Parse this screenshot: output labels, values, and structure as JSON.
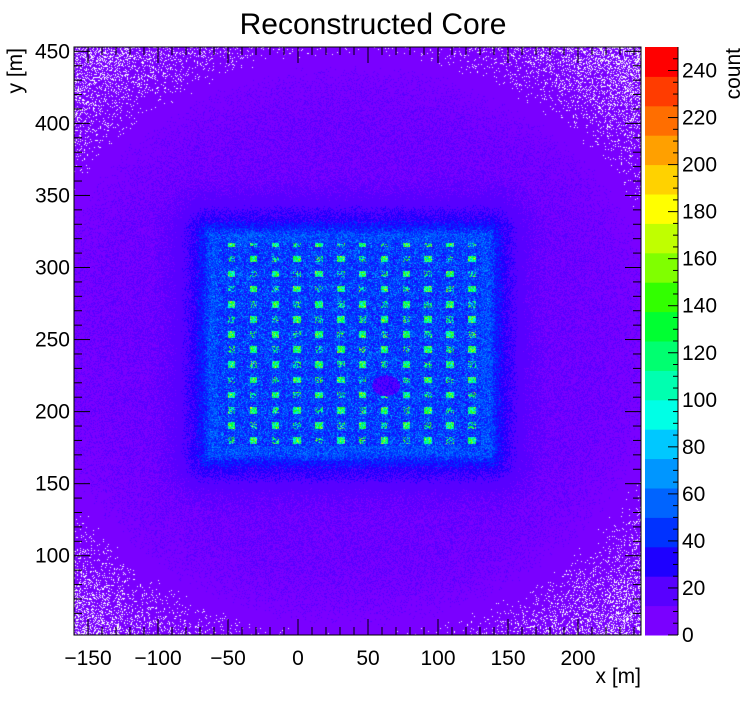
{
  "chart_data": {
    "type": "heatmap",
    "title": "Reconstructed Core",
    "xlabel": "x [m]",
    "ylabel": "y [m]",
    "zlabel": "count",
    "xlim": [
      -160,
      245
    ],
    "ylim": [
      45,
      453
    ],
    "zlim": [
      0,
      250
    ],
    "x_ticks": [
      -150,
      -100,
      -50,
      0,
      50,
      100,
      150,
      200
    ],
    "y_ticks": [
      100,
      150,
      200,
      250,
      300,
      350,
      400,
      450
    ],
    "z_ticks": [
      0,
      20,
      40,
      60,
      80,
      100,
      120,
      140,
      160,
      180,
      200,
      220,
      240
    ],
    "x_tick_labels": [
      "−150",
      "−100",
      "−50",
      "0",
      "50",
      "100",
      "150",
      "200"
    ],
    "y_tick_labels": [
      "100",
      "150",
      "200",
      "250",
      "300",
      "350",
      "400",
      "450"
    ],
    "z_tick_labels": [
      "0",
      "20",
      "40",
      "60",
      "80",
      "100",
      "120",
      "140",
      "160",
      "180",
      "200",
      "220",
      "240"
    ],
    "palette": [
      "#7a00ff",
      "#5800ff",
      "#1e00ff",
      "#0032ff",
      "#0064ff",
      "#0096ff",
      "#00c8ff",
      "#00ffe6",
      "#00ffb0",
      "#00ff70",
      "#00ff32",
      "#32ff00",
      "#80ff00",
      "#c0ff00",
      "#ffff00",
      "#ffd200",
      "#ffa000",
      "#ff6e00",
      "#ff3c00",
      "#ff0000"
    ],
    "empty_color": "#ffffff",
    "grid": false,
    "legend": "color-bar-right",
    "description_values": {
      "background_count": 8,
      "core_region": {
        "x": [
          -63,
          137
        ],
        "y": [
          170,
          323
        ],
        "count": 60
      },
      "detector_hotspot_count": 120,
      "max_count": 250,
      "detector_grid_spacing_m": [
        15.6,
        10.5
      ],
      "hole_center": [
        63,
        218
      ]
    }
  }
}
